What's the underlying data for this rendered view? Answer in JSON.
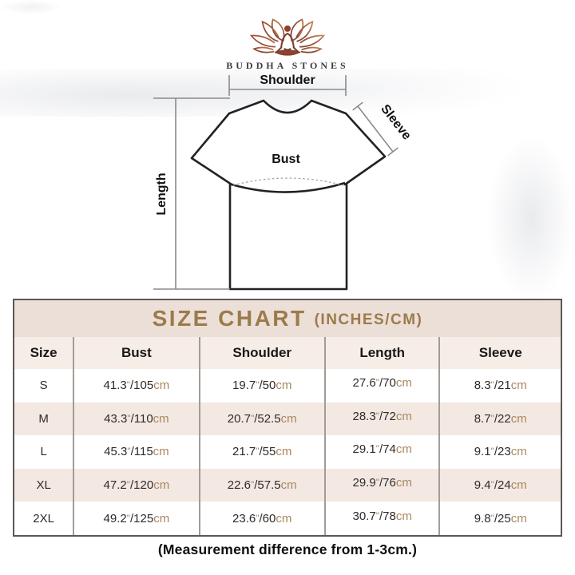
{
  "brand": {
    "name": "BUDDHA STONES",
    "logo_icon": "lotus-meditation-icon"
  },
  "diagram": {
    "labels": {
      "shoulder": "Shoulder",
      "sleeve": "Sleeve",
      "bust": "Bust",
      "length": "Length"
    }
  },
  "size_chart": {
    "title": "SIZE CHART",
    "title_suffix": "(INCHES/CM)",
    "columns": [
      "Size",
      "Bust",
      "Shoulder",
      "Length",
      "Sleeve"
    ],
    "units": {
      "inch_mark": "\"",
      "separator": "/",
      "cm_suffix": "cm"
    },
    "rows": [
      {
        "size": "S",
        "bust": {
          "in": "41.3",
          "cm": "105"
        },
        "shoulder": {
          "in": "19.7",
          "cm": "50"
        },
        "length": {
          "in": "27.6",
          "cm": "70"
        },
        "sleeve": {
          "in": "8.3",
          "cm": "21"
        }
      },
      {
        "size": "M",
        "bust": {
          "in": "43.3",
          "cm": "110"
        },
        "shoulder": {
          "in": "20.7",
          "cm": "52.5"
        },
        "length": {
          "in": "28.3",
          "cm": "72"
        },
        "sleeve": {
          "in": "8.7",
          "cm": "22"
        }
      },
      {
        "size": "L",
        "bust": {
          "in": "45.3",
          "cm": "115"
        },
        "shoulder": {
          "in": "21.7",
          "cm": "55"
        },
        "length": {
          "in": "29.1",
          "cm": "74"
        },
        "sleeve": {
          "in": "9.1",
          "cm": "23"
        }
      },
      {
        "size": "XL",
        "bust": {
          "in": "47.2",
          "cm": "120"
        },
        "shoulder": {
          "in": "22.6",
          "cm": "57.5"
        },
        "length": {
          "in": "29.9",
          "cm": "76"
        },
        "sleeve": {
          "in": "9.4",
          "cm": "24"
        }
      },
      {
        "size": "2XL",
        "bust": {
          "in": "49.2",
          "cm": "125"
        },
        "shoulder": {
          "in": "23.6",
          "cm": "60"
        },
        "length": {
          "in": "30.7",
          "cm": "78"
        },
        "sleeve": {
          "in": "9.8",
          "cm": "25"
        }
      }
    ]
  },
  "footnote": "(Measurement difference from 1-3cm.)",
  "colors": {
    "title_gold": "#9b7b4a",
    "unit_tan": "#a9875f",
    "title_band_beige": "#ecdfd8",
    "row_beige": "#f3e9e2",
    "table_border": "#5c5754",
    "logo_dark": "#7e3f2d",
    "logo_light": "#c58a5a"
  },
  "chart_data": {
    "type": "table",
    "title": "SIZE CHART (INCHES/CM)",
    "columns": [
      "Size",
      "Bust",
      "Shoulder",
      "Length",
      "Sleeve"
    ],
    "rows": [
      [
        "S",
        "41.3\"/105cm",
        "19.7\"/50cm",
        "27.6\"/70cm",
        "8.3\"/21cm"
      ],
      [
        "M",
        "43.3\"/110cm",
        "20.7\"/52.5cm",
        "28.3\"/72cm",
        "8.7\"/22cm"
      ],
      [
        "L",
        "45.3\"/115cm",
        "21.7\"/55cm",
        "29.1\"/74cm",
        "9.1\"/23cm"
      ],
      [
        "XL",
        "47.2\"/120cm",
        "22.6\"/57.5cm",
        "29.9\"/76cm",
        "9.4\"/24cm"
      ],
      [
        "2XL",
        "49.2\"/125cm",
        "23.6\"/60cm",
        "30.7\"/78cm",
        "9.8\"/25cm"
      ]
    ],
    "footnote": "(Measurement difference from 1-3cm.)"
  }
}
